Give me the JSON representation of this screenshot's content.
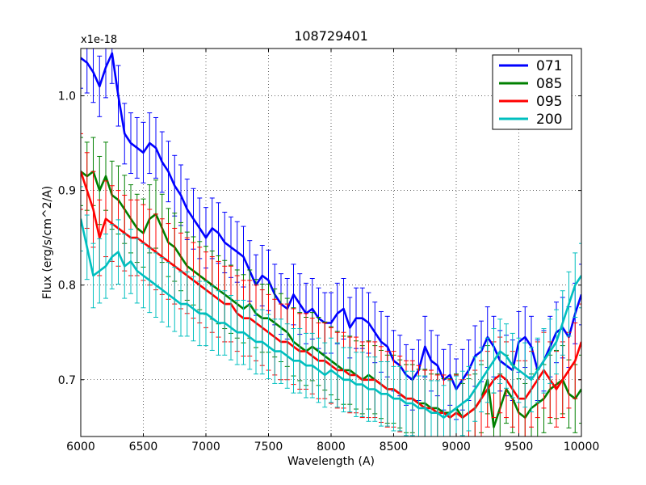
{
  "chart_data": {
    "type": "line",
    "title": "108729401",
    "xlabel": "Wavelength (A)",
    "ylabel": "Flux (erg/s/cm^2/A)",
    "y_multiplier_label": "x1e-18",
    "xlim": [
      6000,
      10000
    ],
    "ylim": [
      0.64,
      1.05
    ],
    "x_ticks": [
      6000,
      6500,
      7000,
      7500,
      8000,
      8500,
      9000,
      9500,
      10000
    ],
    "x_tick_labels": [
      "6000",
      "6500",
      "7000",
      "7500",
      "8000",
      "8500",
      "9000",
      "9500",
      "10000"
    ],
    "y_ticks": [
      0.7,
      0.8,
      0.9,
      1.0
    ],
    "y_tick_labels": [
      "0.7",
      "0.8",
      "0.9",
      "1.0"
    ],
    "grid": true,
    "legend_position": "top-right",
    "x": [
      6000,
      6050,
      6100,
      6150,
      6200,
      6250,
      6300,
      6350,
      6400,
      6450,
      6500,
      6550,
      6600,
      6650,
      6700,
      6750,
      6800,
      6850,
      6900,
      6950,
      7000,
      7050,
      7100,
      7150,
      7200,
      7250,
      7300,
      7350,
      7400,
      7450,
      7500,
      7550,
      7600,
      7650,
      7700,
      7750,
      7800,
      7850,
      7900,
      7950,
      8000,
      8050,
      8100,
      8150,
      8200,
      8250,
      8300,
      8350,
      8400,
      8450,
      8500,
      8550,
      8600,
      8650,
      8700,
      8750,
      8800,
      8850,
      8900,
      8950,
      9000,
      9050,
      9100,
      9150,
      9200,
      9250,
      9300,
      9350,
      9400,
      9450,
      9500,
      9550,
      9600,
      9650,
      9700,
      9750,
      9800,
      9850,
      9900,
      9950,
      10000
    ],
    "series": [
      {
        "name": "071",
        "color": "#0000ff",
        "error": 0.032,
        "values": [
          1.04,
          1.035,
          1.025,
          1.01,
          1.03,
          1.045,
          1.0,
          0.96,
          0.95,
          0.945,
          0.94,
          0.95,
          0.945,
          0.93,
          0.92,
          0.905,
          0.895,
          0.88,
          0.87,
          0.86,
          0.85,
          0.86,
          0.855,
          0.845,
          0.84,
          0.835,
          0.83,
          0.815,
          0.8,
          0.81,
          0.805,
          0.79,
          0.78,
          0.775,
          0.79,
          0.78,
          0.77,
          0.775,
          0.765,
          0.76,
          0.76,
          0.77,
          0.775,
          0.755,
          0.765,
          0.765,
          0.76,
          0.75,
          0.74,
          0.735,
          0.72,
          0.715,
          0.705,
          0.7,
          0.71,
          0.735,
          0.72,
          0.715,
          0.7,
          0.705,
          0.69,
          0.7,
          0.71,
          0.725,
          0.73,
          0.745,
          0.735,
          0.72,
          0.715,
          0.71,
          0.74,
          0.745,
          0.735,
          0.71,
          0.72,
          0.735,
          0.75,
          0.755,
          0.745,
          0.77,
          0.79
        ]
      },
      {
        "name": "085",
        "color": "#008000",
        "error": 0.036,
        "values": [
          0.92,
          0.915,
          0.92,
          0.9,
          0.915,
          0.895,
          0.89,
          0.88,
          0.87,
          0.86,
          0.855,
          0.87,
          0.875,
          0.86,
          0.845,
          0.84,
          0.83,
          0.82,
          0.815,
          0.81,
          0.805,
          0.8,
          0.795,
          0.79,
          0.785,
          0.78,
          0.775,
          0.78,
          0.77,
          0.765,
          0.765,
          0.76,
          0.755,
          0.75,
          0.74,
          0.735,
          0.73,
          0.735,
          0.73,
          0.725,
          0.72,
          0.715,
          0.71,
          0.71,
          0.705,
          0.7,
          0.705,
          0.7,
          0.695,
          0.69,
          0.69,
          0.685,
          0.68,
          0.68,
          0.675,
          0.675,
          0.67,
          0.67,
          0.665,
          0.665,
          0.67,
          0.66,
          0.665,
          0.67,
          0.68,
          0.7,
          0.65,
          0.67,
          0.69,
          0.68,
          0.665,
          0.66,
          0.67,
          0.675,
          0.68,
          0.69,
          0.695,
          0.7,
          0.685,
          0.68,
          0.69
        ]
      },
      {
        "name": "095",
        "color": "#ff0000",
        "error": 0.04,
        "values": [
          0.92,
          0.9,
          0.88,
          0.85,
          0.87,
          0.865,
          0.86,
          0.855,
          0.85,
          0.85,
          0.845,
          0.84,
          0.835,
          0.83,
          0.825,
          0.82,
          0.815,
          0.81,
          0.805,
          0.8,
          0.795,
          0.79,
          0.785,
          0.78,
          0.78,
          0.77,
          0.765,
          0.765,
          0.76,
          0.755,
          0.75,
          0.745,
          0.74,
          0.74,
          0.735,
          0.73,
          0.73,
          0.725,
          0.72,
          0.72,
          0.715,
          0.71,
          0.71,
          0.705,
          0.705,
          0.7,
          0.7,
          0.7,
          0.695,
          0.69,
          0.69,
          0.685,
          0.68,
          0.68,
          0.675,
          0.67,
          0.67,
          0.665,
          0.665,
          0.66,
          0.665,
          0.66,
          0.665,
          0.67,
          0.68,
          0.69,
          0.7,
          0.705,
          0.7,
          0.69,
          0.68,
          0.68,
          0.69,
          0.7,
          0.71,
          0.7,
          0.69,
          0.7,
          0.71,
          0.72,
          0.74
        ]
      },
      {
        "name": "200",
        "color": "#00bfbf",
        "error": 0.034,
        "values": [
          0.87,
          0.84,
          0.81,
          0.815,
          0.82,
          0.83,
          0.835,
          0.82,
          0.825,
          0.815,
          0.81,
          0.805,
          0.8,
          0.795,
          0.79,
          0.785,
          0.78,
          0.78,
          0.775,
          0.77,
          0.77,
          0.765,
          0.76,
          0.76,
          0.755,
          0.75,
          0.75,
          0.745,
          0.74,
          0.74,
          0.735,
          0.73,
          0.73,
          0.725,
          0.72,
          0.72,
          0.715,
          0.715,
          0.71,
          0.705,
          0.71,
          0.705,
          0.7,
          0.7,
          0.695,
          0.695,
          0.69,
          0.69,
          0.685,
          0.685,
          0.68,
          0.68,
          0.675,
          0.675,
          0.67,
          0.67,
          0.665,
          0.665,
          0.66,
          0.665,
          0.67,
          0.675,
          0.68,
          0.69,
          0.7,
          0.71,
          0.72,
          0.73,
          0.725,
          0.715,
          0.71,
          0.705,
          0.7,
          0.71,
          0.72,
          0.73,
          0.74,
          0.76,
          0.78,
          0.8,
          0.81
        ]
      }
    ]
  }
}
